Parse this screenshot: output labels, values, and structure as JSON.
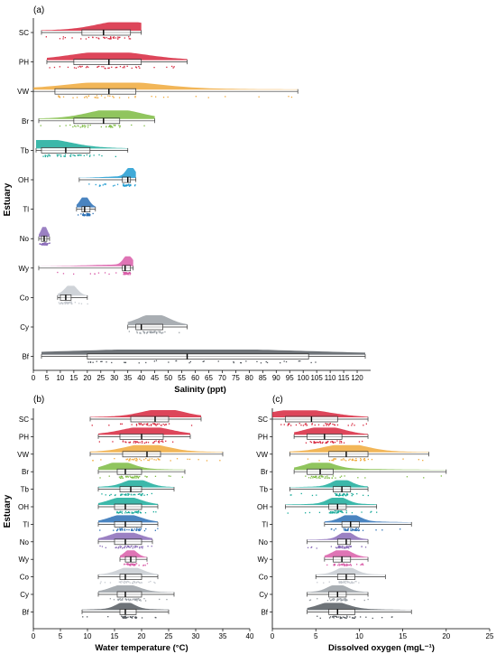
{
  "figure": {
    "panels": [
      {
        "key": "a",
        "panel_label": "(a)",
        "ylabel": "Estuary",
        "xlabel": "Salinity (ppt)",
        "xlim": [
          0,
          125
        ],
        "xticks": [
          0,
          5,
          10,
          15,
          20,
          25,
          30,
          35,
          40,
          45,
          50,
          55,
          60,
          65,
          70,
          75,
          80,
          85,
          90,
          95,
          100,
          105,
          110,
          115,
          120
        ]
      },
      {
        "key": "b",
        "panel_label": "(b)",
        "ylabel": "Estuary",
        "xlabel": "Water temperature (°C)",
        "xlim": [
          0,
          40
        ],
        "xticks": [
          0,
          5,
          10,
          15,
          20,
          25,
          30,
          35,
          40
        ]
      },
      {
        "key": "c",
        "panel_label": "(c)",
        "ylabel": "",
        "xlabel": "Dissolved oxygen (mgL⁻¹)",
        "xlim": [
          0,
          25
        ],
        "xticks": [
          0,
          5,
          10,
          15,
          20,
          25
        ]
      }
    ]
  },
  "chart_data": [
    {
      "type": "raincloud",
      "panel": "(a)",
      "xlabel": "Salinity (ppt)",
      "ylabel": "Estuary",
      "xlim": [
        0,
        125
      ],
      "grid": false,
      "series": [
        {
          "name": "SC",
          "color": "#d7263d",
          "min": 3,
          "q1": 18,
          "median": 26,
          "q3": 36,
          "max": 40,
          "density_peak": 34
        },
        {
          "name": "PH",
          "color": "#d7263d",
          "min": 5,
          "q1": 15,
          "median": 28,
          "q3": 40,
          "max": 57,
          "density_peak": 28
        },
        {
          "name": "VW",
          "color": "#f0a93b",
          "min": 0,
          "q1": 8,
          "median": 28,
          "q3": 38,
          "max": 98,
          "density_peak": 30
        },
        {
          "name": "Br",
          "color": "#7dbb42",
          "min": 2,
          "q1": 15,
          "median": 26,
          "q3": 32,
          "max": 45,
          "density_peak": 30
        },
        {
          "name": "Tb",
          "color": "#1aab9b",
          "min": 1,
          "q1": 3,
          "median": 12,
          "q3": 21,
          "max": 35,
          "density_peak": 3
        },
        {
          "name": "OH",
          "color": "#1f9bd1",
          "min": 17,
          "q1": 33,
          "median": 35,
          "q3": 36,
          "max": 38,
          "density_peak": 36
        },
        {
          "name": "Tl",
          "color": "#2a6fb5",
          "min": 16,
          "q1": 18,
          "median": 19,
          "q3": 21,
          "max": 23,
          "density_peak": 19
        },
        {
          "name": "No",
          "color": "#8a6bb8",
          "min": 2,
          "q1": 3,
          "median": 4,
          "q3": 5,
          "max": 6,
          "density_peak": 4
        },
        {
          "name": "Wy",
          "color": "#d95ca8",
          "min": 2,
          "q1": 33,
          "median": 34,
          "q3": 36,
          "max": 37,
          "density_peak": 35
        },
        {
          "name": "Co",
          "color": "#c7cbd1",
          "min": 9,
          "q1": 10,
          "median": 12,
          "q3": 14,
          "max": 20,
          "density_peak": 14
        },
        {
          "name": "Cy",
          "color": "#9aa0a6",
          "min": 35,
          "q1": 38,
          "median": 40,
          "q3": 48,
          "max": 57,
          "density_peak": 45
        },
        {
          "name": "Bf",
          "color": "#555a60",
          "min": 3,
          "q1": 20,
          "median": 57,
          "q3": 102,
          "max": 123,
          "density_peak": 57
        }
      ]
    },
    {
      "type": "raincloud",
      "panel": "(b)",
      "xlabel": "Water temperature (°C)",
      "ylabel": "Estuary",
      "xlim": [
        0,
        40
      ],
      "grid": false,
      "series": [
        {
          "name": "SC",
          "color": "#d7263d",
          "min": 10.5,
          "q1": 18,
          "median": 22.5,
          "q3": 25,
          "max": 31,
          "density_peak": 24
        },
        {
          "name": "PH",
          "color": "#d7263d",
          "min": 12,
          "q1": 16,
          "median": 20,
          "q3": 24,
          "max": 29,
          "density_peak": 21
        },
        {
          "name": "VW",
          "color": "#f0a93b",
          "min": 10.5,
          "q1": 16.5,
          "median": 21,
          "q3": 23.5,
          "max": 35,
          "density_peak": 21
        },
        {
          "name": "Br",
          "color": "#7dbb42",
          "min": 12,
          "q1": 15.5,
          "median": 17,
          "q3": 20,
          "max": 28,
          "density_peak": 16
        },
        {
          "name": "Tb",
          "color": "#1aab9b",
          "min": 12,
          "q1": 16,
          "median": 18,
          "q3": 20,
          "max": 26,
          "density_peak": 19
        },
        {
          "name": "OH",
          "color": "#1aab9b",
          "min": 12,
          "q1": 15,
          "median": 17,
          "q3": 20,
          "max": 23,
          "density_peak": 17
        },
        {
          "name": "Tl",
          "color": "#2a6fb5",
          "min": 12,
          "q1": 15,
          "median": 17,
          "q3": 20,
          "max": 23,
          "density_peak": 17
        },
        {
          "name": "No",
          "color": "#8a6bb8",
          "min": 12,
          "q1": 15,
          "median": 17,
          "q3": 20,
          "max": 22,
          "density_peak": 17
        },
        {
          "name": "Wy",
          "color": "#d95ca8",
          "min": 16,
          "q1": 17,
          "median": 18,
          "q3": 19,
          "max": 21,
          "density_peak": 18
        },
        {
          "name": "Co",
          "color": "#c7cbd1",
          "min": 12,
          "q1": 16,
          "median": 17,
          "q3": 20,
          "max": 23,
          "density_peak": 18
        },
        {
          "name": "Cy",
          "color": "#9aa0a6",
          "min": 12,
          "q1": 15.5,
          "median": 17,
          "q3": 20,
          "max": 26,
          "density_peak": 17
        },
        {
          "name": "Bf",
          "color": "#555a60",
          "min": 9,
          "q1": 16,
          "median": 17,
          "q3": 19,
          "max": 25,
          "density_peak": 17
        }
      ]
    },
    {
      "type": "raincloud",
      "panel": "(c)",
      "xlabel": "Dissolved oxygen (mgL⁻¹)",
      "ylabel": "",
      "xlim": [
        0,
        25
      ],
      "grid": false,
      "series": [
        {
          "name": "SC",
          "color": "#d7263d",
          "min": 0,
          "q1": 1.5,
          "median": 4.5,
          "q3": 7.5,
          "max": 11,
          "density_peak": 3
        },
        {
          "name": "PH",
          "color": "#d7263d",
          "min": 2.5,
          "q1": 4,
          "median": 6,
          "q3": 8,
          "max": 11,
          "density_peak": 6
        },
        {
          "name": "VW",
          "color": "#f0a93b",
          "min": 2,
          "q1": 6.5,
          "median": 8.5,
          "q3": 11,
          "max": 18,
          "density_peak": 8.5
        },
        {
          "name": "Br",
          "color": "#7dbb42",
          "min": 2.5,
          "q1": 4,
          "median": 5.5,
          "q3": 7,
          "max": 20,
          "density_peak": 5.5
        },
        {
          "name": "Tb",
          "color": "#1aab9b",
          "min": 2,
          "q1": 7,
          "median": 8,
          "q3": 9,
          "max": 11,
          "density_peak": 8
        },
        {
          "name": "OH",
          "color": "#1aab9b",
          "min": 1.5,
          "q1": 6.5,
          "median": 7.5,
          "q3": 8.5,
          "max": 12,
          "density_peak": 7.5
        },
        {
          "name": "Tl",
          "color": "#2a6fb5",
          "min": 6,
          "q1": 8,
          "median": 9,
          "q3": 10,
          "max": 16,
          "density_peak": 9
        },
        {
          "name": "No",
          "color": "#8a6bb8",
          "min": 4,
          "q1": 7.5,
          "median": 8.5,
          "q3": 9,
          "max": 11,
          "density_peak": 8.5
        },
        {
          "name": "Wy",
          "color": "#d95ca8",
          "min": 6,
          "q1": 7,
          "median": 8,
          "q3": 9,
          "max": 11,
          "density_peak": 8
        },
        {
          "name": "Co",
          "color": "#c7cbd1",
          "min": 5,
          "q1": 7.5,
          "median": 8.5,
          "q3": 9.5,
          "max": 13,
          "density_peak": 8.5
        },
        {
          "name": "Cy",
          "color": "#9aa0a6",
          "min": 4,
          "q1": 6.5,
          "median": 7.5,
          "q3": 8.5,
          "max": 11,
          "density_peak": 7.5
        },
        {
          "name": "Bf",
          "color": "#555a60",
          "min": 4,
          "q1": 6.5,
          "median": 7.5,
          "q3": 9.5,
          "max": 16,
          "density_peak": 7
        }
      ]
    }
  ]
}
